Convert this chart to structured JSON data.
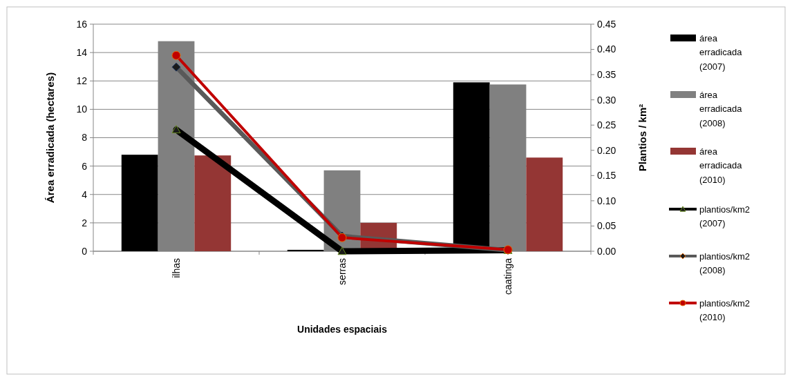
{
  "chart_data": {
    "type": "bar",
    "xlabel": "Unidades espaciais",
    "ylabel": "Área erradicada  (hectares)",
    "y2label": "Plantios / km²",
    "categories": [
      "ilhas",
      "serras",
      "caatinga"
    ],
    "series": [
      {
        "name": "área erradicada (2007)",
        "color": "#000000",
        "values": [
          6.8,
          0.1,
          11.9
        ]
      },
      {
        "name": "área erradicada (2008)",
        "color": "#808080",
        "values": [
          14.8,
          5.7,
          11.75
        ]
      },
      {
        "name": "área erradicada (2010)",
        "color": "#943634",
        "values": [
          6.75,
          2.0,
          6.6
        ]
      },
      {
        "name": "plantios/km2 (2007)",
        "type": "line",
        "axis": "y2",
        "marker": "triangle",
        "color": "#000000",
        "values": [
          0.241,
          0.0,
          0.002
        ]
      },
      {
        "name": "plantios/km2 (2008)",
        "type": "line",
        "axis": "y2",
        "marker": "diamond",
        "color": "#595959",
        "values": [
          0.365,
          0.03,
          0.002
        ]
      },
      {
        "name": "plantios/km2 (2010)",
        "type": "line",
        "axis": "y2",
        "marker": "circle",
        "color": "#c00000",
        "values": [
          0.388,
          0.027,
          0.003
        ]
      }
    ],
    "ylim": [
      0,
      16
    ],
    "yticks": [
      0,
      2,
      4,
      6,
      8,
      10,
      12,
      14,
      16
    ],
    "y2lim": [
      0,
      0.45
    ],
    "y2ticks": [
      {
        "value": 0,
        "label": "0.00"
      },
      {
        "value": 0.05,
        "label": "0.05"
      },
      {
        "value": 0.1,
        "label": "0.10"
      },
      {
        "value": 0.15,
        "label": "0.15"
      },
      {
        "value": 0.2,
        "label": "0.20"
      },
      {
        "value": 0.25,
        "label": "0.25"
      },
      {
        "value": 0.3,
        "label": "0.30"
      },
      {
        "value": 0.35,
        "label": "0.35"
      },
      {
        "value": 0.4,
        "label": "0.40"
      },
      {
        "value": 0.45,
        "label": "0.45"
      }
    ],
    "grid": "y",
    "legend": "right"
  }
}
